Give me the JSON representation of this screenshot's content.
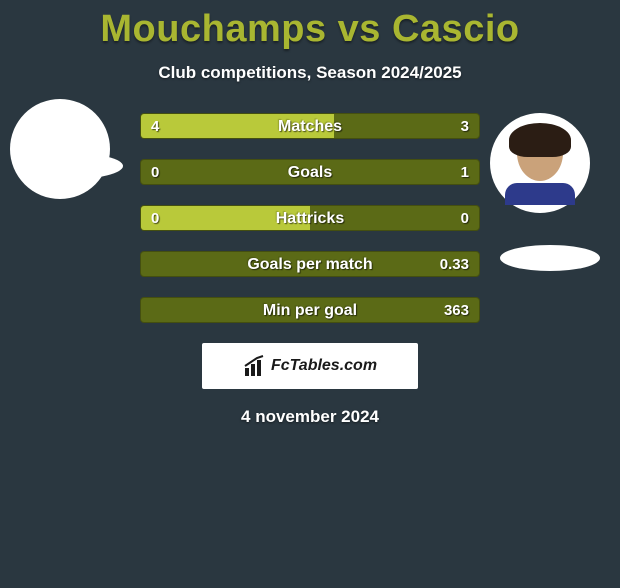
{
  "title": "Mouchamps vs Cascio",
  "subtitle": "Club competitions, Season 2024/2025",
  "date": "4 november 2024",
  "logo_text": "FcTables.com",
  "colors": {
    "title": "#a9b631",
    "bar_light": "#b9c93a",
    "bar_dark": "#5b6a16",
    "background": "#2a3740",
    "white": "#ffffff"
  },
  "bars": [
    {
      "label": "Matches",
      "left": "4",
      "right": "3",
      "left_pct": 57
    },
    {
      "label": "Goals",
      "left": "0",
      "right": "1",
      "left_pct": 0
    },
    {
      "label": "Hattricks",
      "left": "0",
      "right": "0",
      "left_pct": 50
    },
    {
      "label": "Goals per match",
      "left": "",
      "right": "0.33",
      "left_pct": 0
    },
    {
      "label": "Min per goal",
      "left": "",
      "right": "363",
      "left_pct": 0
    }
  ]
}
